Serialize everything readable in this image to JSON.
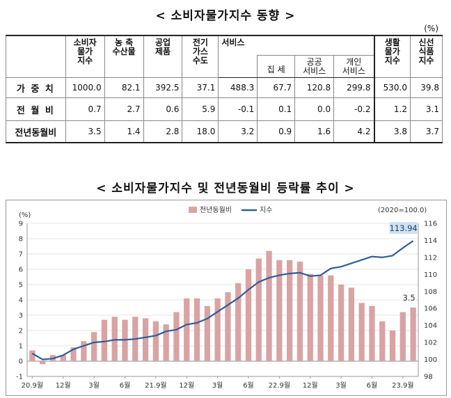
{
  "table": {
    "title": "< 소비자물가지수 동향 >",
    "unit": "(%)",
    "headers": {
      "cpi": [
        "소비자",
        "물가",
        "지수"
      ],
      "agri": [
        "농 축",
        "수산물"
      ],
      "industrial": [
        "공업",
        "제품"
      ],
      "utility": [
        "전기",
        "가스",
        "수도"
      ],
      "services": "서비스",
      "rent": "집 세",
      "public_services": [
        "공공",
        "서비스"
      ],
      "private_services": [
        "개인",
        "서비스"
      ],
      "living": [
        "생활",
        "물가",
        "지수"
      ],
      "fresh": [
        "신선",
        "식품",
        "지수"
      ]
    },
    "rows": [
      {
        "label": "가 중 치",
        "values": [
          "1000.0",
          "82.1",
          "392.5",
          "37.1",
          "488.3",
          "67.7",
          "120.8",
          "299.8",
          "530.0",
          "39.8"
        ]
      },
      {
        "label": "전 월 비",
        "values": [
          "0.7",
          "2.7",
          "0.6",
          "5.9",
          "-0.1",
          "0.1",
          "0.0",
          "-0.2",
          "1.2",
          "3.1"
        ]
      },
      {
        "label": "전년동월비",
        "values": [
          "3.5",
          "1.4",
          "2.8",
          "18.0",
          "3.2",
          "0.9",
          "1.6",
          "4.2",
          "3.8",
          "3.7"
        ]
      }
    ]
  },
  "chart_title": "< 소비자물가지수 및 전년동월비 등락률 추이 >",
  "chart_data": {
    "type": "bar",
    "legend": {
      "bar_label": "전년동월비",
      "line_label": "지수",
      "placement": "top-center"
    },
    "base_note": "(2020=100.0)",
    "left_axis_unit": "(%)",
    "left_ylim": [
      -1,
      9
    ],
    "left_ticks": [
      "-1",
      "0",
      "1",
      "2",
      "3",
      "4",
      "5",
      "6",
      "7",
      "8",
      "9"
    ],
    "right_ylim": [
      98,
      116
    ],
    "right_ticks": [
      "98",
      "100",
      "102",
      "104",
      "106",
      "108",
      "110",
      "112",
      "114",
      "116"
    ],
    "x_tick_labels": [
      {
        "index": 0,
        "label": "20.9월"
      },
      {
        "index": 3,
        "label": "12월"
      },
      {
        "index": 6,
        "label": "3월"
      },
      {
        "index": 9,
        "label": "6월"
      },
      {
        "index": 12,
        "label": "21.9월"
      },
      {
        "index": 15,
        "label": "12월"
      },
      {
        "index": 18,
        "label": "3월"
      },
      {
        "index": 21,
        "label": "6월"
      },
      {
        "index": 24,
        "label": "22.9월"
      },
      {
        "index": 27,
        "label": "12월"
      },
      {
        "index": 30,
        "label": "3월"
      },
      {
        "index": 33,
        "label": "6월"
      },
      {
        "index": 36,
        "label": "23.9월"
      }
    ],
    "bar_series": {
      "name": "전년동월비",
      "color": "#d9a3a3",
      "values": [
        0.7,
        -0.2,
        0.4,
        0.4,
        0.9,
        1.3,
        1.9,
        2.7,
        2.9,
        2.7,
        2.9,
        2.8,
        2.6,
        2.4,
        3.2,
        4.1,
        4.1,
        3.6,
        4.1,
        4.5,
        5.1,
        6.0,
        6.7,
        7.2,
        6.6,
        6.6,
        6.5,
        5.7,
        5.6,
        5.6,
        5.0,
        4.8,
        3.8,
        3.6,
        2.6,
        2.0,
        3.2,
        3.5
      ]
    },
    "line_series": {
      "name": "지수",
      "color": "#2e5d9a",
      "values": [
        100.7,
        100.0,
        100.1,
        100.5,
        101.2,
        101.6,
        102.0,
        102.1,
        102.3,
        102.3,
        102.4,
        102.6,
        102.8,
        103.3,
        103.5,
        104.1,
        104.3,
        104.8,
        105.6,
        106.4,
        107.2,
        108.2,
        109.1,
        109.6,
        109.9,
        110.1,
        110.2,
        109.8,
        109.9,
        110.7,
        110.9,
        111.3,
        111.7,
        112.1,
        112.0,
        112.2,
        113.1,
        113.94
      ]
    },
    "annotations": [
      {
        "series": "line",
        "index": 37,
        "label": "113.94"
      },
      {
        "series": "bar",
        "index": 37,
        "label": "3.5"
      }
    ]
  }
}
